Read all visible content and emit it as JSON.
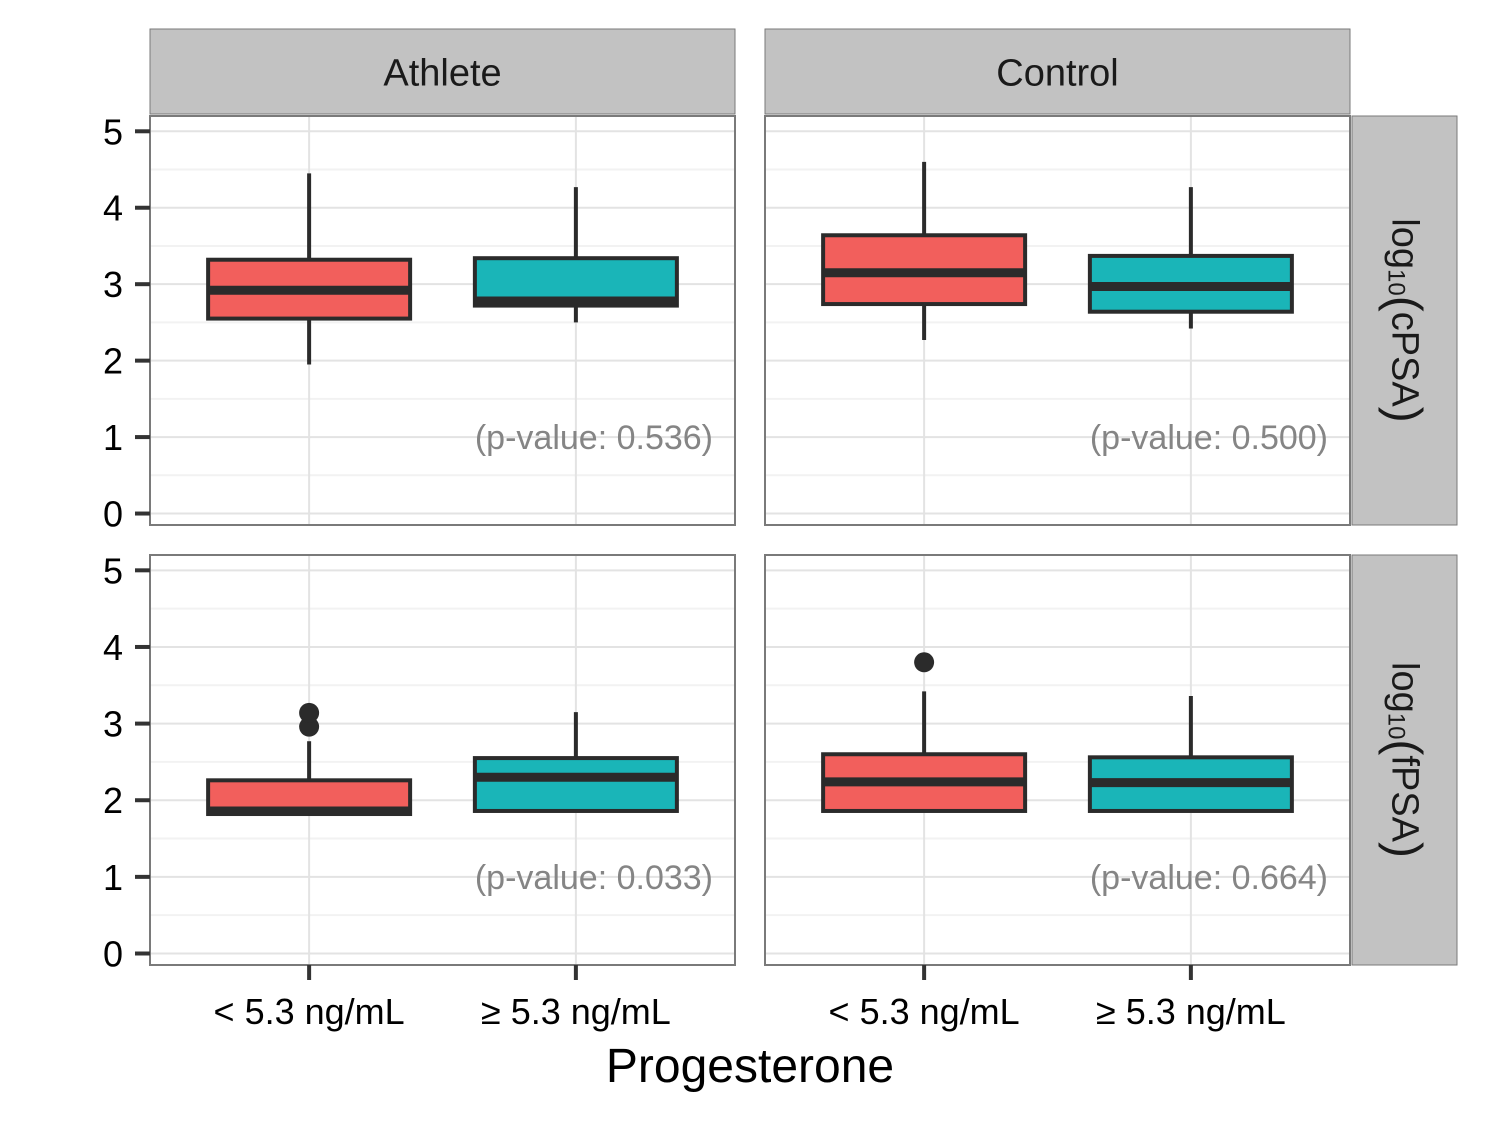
{
  "chart_data": {
    "type": "box",
    "xlabel": "Progesterone",
    "categories": [
      "< 5.3 ng/mL",
      "≥ 5.3 ng/mL"
    ],
    "column_facets": [
      "Athlete",
      "Control"
    ],
    "row_facets": [
      {
        "label_base": "log",
        "label_sub": "10",
        "label_open": "(",
        "label_inner": "cPSA",
        "label_close": ")"
      },
      {
        "label_base": "log",
        "label_sub": "10",
        "label_open": "(",
        "label_inner": "fPSA",
        "label_close": ")"
      }
    ],
    "ylim": [
      -0.15,
      5.2
    ],
    "yticks": [
      0,
      1,
      2,
      3,
      4,
      5
    ],
    "grid": true,
    "colors": {
      "below": "#F25F5C",
      "above": "#1AB5B8",
      "strip_bg": "#C2C2C2",
      "panel_border": "#7A7A7A",
      "grid_major": "#E3E3E3",
      "grid_minor": "#F2F2F2",
      "annotation": "#858585",
      "box_line": "#2B2B2B"
    },
    "panels": [
      {
        "row": 0,
        "col": 0,
        "annotation": "(p-value: 0.536)",
        "boxes": [
          {
            "category": "< 5.3 ng/mL",
            "whisker_low": 1.95,
            "q1": 2.55,
            "median": 2.92,
            "q3": 3.32,
            "whisker_high": 4.45,
            "outliers": []
          },
          {
            "category": "≥ 5.3 ng/mL",
            "whisker_low": 2.5,
            "q1": 2.72,
            "median": 2.78,
            "q3": 3.34,
            "whisker_high": 4.27,
            "outliers": []
          }
        ]
      },
      {
        "row": 0,
        "col": 1,
        "annotation": "(p-value: 0.500)",
        "boxes": [
          {
            "category": "< 5.3 ng/mL",
            "whisker_low": 2.27,
            "q1": 2.74,
            "median": 3.15,
            "q3": 3.64,
            "whisker_high": 4.6,
            "outliers": []
          },
          {
            "category": "≥ 5.3 ng/mL",
            "whisker_low": 2.42,
            "q1": 2.64,
            "median": 2.97,
            "q3": 3.37,
            "whisker_high": 4.27,
            "outliers": []
          }
        ]
      },
      {
        "row": 1,
        "col": 0,
        "annotation": "(p-value: 0.033)",
        "boxes": [
          {
            "category": "< 5.3 ng/mL",
            "whisker_low": 1.82,
            "q1": 1.82,
            "median": 1.86,
            "q3": 2.26,
            "whisker_high": 2.77,
            "outliers": [
              2.96,
              3.14
            ]
          },
          {
            "category": "≥ 5.3 ng/mL",
            "whisker_low": 1.86,
            "q1": 1.86,
            "median": 2.3,
            "q3": 2.55,
            "whisker_high": 3.15,
            "outliers": []
          }
        ]
      },
      {
        "row": 1,
        "col": 1,
        "annotation": "(p-value: 0.664)",
        "boxes": [
          {
            "category": "< 5.3 ng/mL",
            "whisker_low": 1.86,
            "q1": 1.86,
            "median": 2.24,
            "q3": 2.6,
            "whisker_high": 3.42,
            "outliers": [
              3.8
            ]
          },
          {
            "category": "≥ 5.3 ng/mL",
            "whisker_low": 1.86,
            "q1": 1.86,
            "median": 2.23,
            "q3": 2.56,
            "whisker_high": 3.36,
            "outliers": []
          }
        ]
      }
    ]
  }
}
